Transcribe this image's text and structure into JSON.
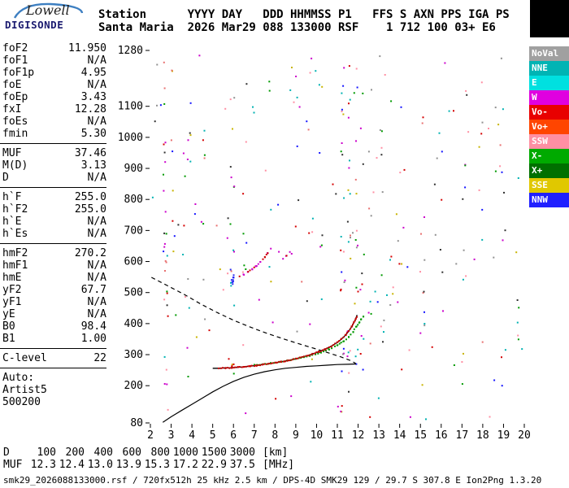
{
  "logo": {
    "brand": "Lowell",
    "product": "DIGISONDE"
  },
  "header": {
    "line1": "Station      YYYY DAY   DDD HHMMSS P1   FFS S AXN PPS IGA PS",
    "line2": "Santa Maria  2026 Mar29 088 133000 RSF    1 712 100 03+ E6"
  },
  "params": {
    "groups": [
      {
        "rows": [
          {
            "label": "foF2",
            "value": "11.950"
          },
          {
            "label": "foF1",
            "value": "N/A"
          },
          {
            "label": "foF1p",
            "value": "4.95"
          },
          {
            "label": "foE",
            "value": "N/A"
          },
          {
            "label": "foEp",
            "value": "3.43"
          },
          {
            "label": "fxI",
            "value": "12.28"
          },
          {
            "label": "foEs",
            "value": "N/A"
          },
          {
            "label": "fmin",
            "value": "5.30"
          }
        ]
      },
      {
        "rows": [
          {
            "label": "MUF",
            "value": "37.46"
          },
          {
            "label": "M(D)",
            "value": "3.13"
          },
          {
            "label": "D",
            "value": "N/A"
          }
        ]
      },
      {
        "rows": [
          {
            "label": "h`F",
            "value": "255.0"
          },
          {
            "label": "h`F2",
            "value": "255.0"
          },
          {
            "label": "h`E",
            "value": "N/A"
          },
          {
            "label": "h`Es",
            "value": "N/A"
          }
        ]
      },
      {
        "rows": [
          {
            "label": "hmF2",
            "value": "270.2"
          },
          {
            "label": "hmF1",
            "value": "N/A"
          },
          {
            "label": "hmE",
            "value": "N/A"
          },
          {
            "label": "yF2",
            "value": "67.7"
          },
          {
            "label": "yF1",
            "value": "N/A"
          },
          {
            "label": "yE",
            "value": "N/A"
          },
          {
            "label": "B0",
            "value": "98.4"
          },
          {
            "label": "B1",
            "value": "1.00"
          }
        ]
      },
      {
        "rows": [
          {
            "label": "C-level",
            "value": "22"
          }
        ]
      },
      {
        "rows": [
          {
            "label": "Auto:",
            "value": ""
          },
          {
            "label": "Artist5",
            "value": ""
          },
          {
            "label": "500200",
            "value": ""
          }
        ]
      }
    ]
  },
  "legend": {
    "items": [
      {
        "label": "NoVal",
        "bg": "#a0a0a0",
        "fg": "#ffffff"
      },
      {
        "label": "NNE",
        "bg": "#00b4b4",
        "fg": "#ffffff"
      },
      {
        "label": "E",
        "bg": "#00e0e0",
        "fg": "#ffffff"
      },
      {
        "label": "W",
        "bg": "#e000e0",
        "fg": "#ffffff"
      },
      {
        "label": "Vo-",
        "bg": "#e80000",
        "fg": "#ffffff"
      },
      {
        "label": "Vo+",
        "bg": "#ff4500",
        "fg": "#ffffff"
      },
      {
        "label": "SSW",
        "bg": "#ff8fa3",
        "fg": "#ffffff"
      },
      {
        "label": "X-",
        "bg": "#00aa00",
        "fg": "#ffffff"
      },
      {
        "label": "X+",
        "bg": "#007000",
        "fg": "#ffffff"
      },
      {
        "label": "SSE",
        "bg": "#e0c800",
        "fg": "#ffffff"
      },
      {
        "label": "NNW",
        "bg": "#2020ff",
        "fg": "#ffffff"
      }
    ]
  },
  "bottom_table": {
    "rows": [
      {
        "label": "D",
        "values": [
          "100",
          "200",
          "400",
          "600",
          "800",
          "1000",
          "1500",
          "3000"
        ],
        "unit": "[km]"
      },
      {
        "label": "MUF",
        "values": [
          "12.3",
          "12.4",
          "13.0",
          "13.9",
          "15.3",
          "17.2",
          "22.9",
          "37.5"
        ],
        "unit": "[MHz]"
      }
    ]
  },
  "footer": {
    "text": "smk29_2026088133000.rsf / 720fx512h 25 kHz 2.5 km / DPS-4D SMK29 129 / 29.7 S 307.8 E Ion2Png 1.3.20"
  },
  "chart_data": {
    "type": "scatter",
    "title": "Ionogram",
    "x_axis": {
      "unit": "MHz",
      "range": [
        2,
        20
      ],
      "ticks": [
        2,
        3,
        4,
        5,
        6,
        7,
        8,
        9,
        10,
        11,
        12,
        13,
        14,
        15,
        16,
        17,
        18,
        19,
        20
      ]
    },
    "y_axis": {
      "unit": "km",
      "range": [
        80,
        1280
      ],
      "ticks": [
        80,
        200,
        300,
        400,
        500,
        600,
        700,
        800,
        900,
        1000,
        1100,
        1280
      ]
    },
    "seed": 421337,
    "speckle_palette": [
      "#cc00cc",
      "#cc00cc",
      "#00b2b2",
      "#00b2b2",
      "#d40000",
      "#909090",
      "#009900",
      "#1414ff",
      "#c8b400",
      "#ff8fa3",
      "#303030",
      "#e87070"
    ],
    "noise_streaks": [
      {
        "f": 2.72,
        "h0": 120,
        "h1": 1265,
        "n": 24
      },
      {
        "f": 3.05,
        "h0": 500,
        "h1": 1265,
        "n": 7
      },
      {
        "f": 3.85,
        "h0": 300,
        "h1": 1260,
        "n": 9
      },
      {
        "f": 4.55,
        "h0": 400,
        "h1": 1200,
        "n": 6
      },
      {
        "f": 5.95,
        "h0": 150,
        "h1": 1260,
        "n": 16
      },
      {
        "f": 5.93,
        "h0": 470,
        "h1": 575,
        "n": 11,
        "colors": [
          "#1414ff",
          "#00b2b2",
          "#2a2af0"
        ]
      },
      {
        "f": 6.55,
        "h0": 250,
        "h1": 1150,
        "n": 7
      },
      {
        "f": 7.8,
        "h0": 400,
        "h1": 1250,
        "n": 5
      },
      {
        "f": 9.0,
        "h0": 350,
        "h1": 1250,
        "n": 6
      },
      {
        "f": 10.2,
        "h0": 400,
        "h1": 1250,
        "n": 5
      },
      {
        "f": 11.25,
        "h0": 100,
        "h1": 1270,
        "n": 22
      },
      {
        "f": 11.55,
        "h0": 120,
        "h1": 1270,
        "n": 18
      },
      {
        "f": 11.9,
        "h0": 150,
        "h1": 1270,
        "n": 15
      },
      {
        "f": 12.2,
        "h0": 200,
        "h1": 1250,
        "n": 11
      },
      {
        "f": 12.6,
        "h0": 300,
        "h1": 1200,
        "n": 6
      },
      {
        "f": 13.2,
        "h0": 250,
        "h1": 1250,
        "n": 9
      },
      {
        "f": 14.0,
        "h0": 400,
        "h1": 1200,
        "n": 5
      },
      {
        "f": 15.1,
        "h0": 200,
        "h1": 1250,
        "n": 9
      },
      {
        "f": 16.0,
        "h0": 400,
        "h1": 1150,
        "n": 5
      },
      {
        "f": 17.1,
        "h0": 150,
        "h1": 1250,
        "n": 9
      },
      {
        "f": 17.9,
        "h0": 250,
        "h1": 1200,
        "n": 7
      },
      {
        "f": 19.0,
        "h0": 200,
        "h1": 1250,
        "n": 8
      },
      {
        "f": 19.65,
        "h0": 300,
        "h1": 1250,
        "n": 7
      }
    ],
    "background_speckle": {
      "n": 135,
      "f_range": [
        2.1,
        19.9
      ],
      "h_range": [
        90,
        1270
      ]
    },
    "traces": {
      "o_trace_dots": {
        "color": "#cc0000",
        "points": [
          [
            5.3,
            256
          ],
          [
            5.6,
            257
          ],
          [
            5.9,
            258
          ],
          [
            6.2,
            259
          ],
          [
            6.5,
            261
          ],
          [
            6.8,
            263
          ],
          [
            7.1,
            265
          ],
          [
            7.4,
            268
          ],
          [
            7.7,
            271
          ],
          [
            8.0,
            274
          ],
          [
            8.3,
            277
          ],
          [
            8.6,
            281
          ],
          [
            8.9,
            285
          ],
          [
            9.2,
            290
          ],
          [
            9.5,
            296
          ],
          [
            9.8,
            302
          ],
          [
            10.1,
            309
          ],
          [
            10.4,
            317
          ],
          [
            10.7,
            327
          ],
          [
            11.0,
            339
          ],
          [
            11.2,
            350
          ],
          [
            11.4,
            363
          ],
          [
            11.55,
            376
          ],
          [
            11.7,
            391
          ],
          [
            11.8,
            404
          ],
          [
            11.88,
            415
          ],
          [
            11.93,
            422
          ]
        ]
      },
      "x_trace_dots": {
        "color": "#009900",
        "points": [
          [
            7.0,
            266
          ],
          [
            7.4,
            269
          ],
          [
            7.8,
            272
          ],
          [
            8.2,
            276
          ],
          [
            8.6,
            281
          ],
          [
            9.0,
            286
          ],
          [
            9.4,
            292
          ],
          [
            9.8,
            299
          ],
          [
            10.2,
            307
          ],
          [
            10.6,
            317
          ],
          [
            11.0,
            330
          ],
          [
            11.3,
            343
          ],
          [
            11.55,
            357
          ],
          [
            11.75,
            372
          ],
          [
            11.92,
            390
          ],
          [
            12.05,
            403
          ],
          [
            12.15,
            413
          ],
          [
            12.24,
            422
          ]
        ]
      },
      "second_hop_dots": {
        "color": "#cc0000",
        "alt_color": "#cc00cc",
        "points": [
          [
            6.3,
            552
          ],
          [
            6.5,
            558
          ],
          [
            6.7,
            566
          ],
          [
            6.9,
            575
          ],
          [
            7.1,
            586
          ],
          [
            7.3,
            599
          ],
          [
            7.5,
            614
          ],
          [
            7.65,
            628
          ],
          [
            7.78,
            641
          ]
        ]
      },
      "second_hop_b_dots": {
        "color": "#cc00cc",
        "alt_color": "#cc0000",
        "points": [
          [
            8.4,
            608
          ],
          [
            8.55,
            618
          ],
          [
            8.7,
            630
          ]
        ]
      },
      "fitted_trace_line": {
        "color": "#000000",
        "style": "solid",
        "points": [
          [
            5.0,
            256
          ],
          [
            5.3,
            256
          ],
          [
            5.6,
            257
          ],
          [
            5.9,
            258
          ],
          [
            6.2,
            259
          ],
          [
            6.5,
            261
          ],
          [
            6.8,
            263
          ],
          [
            7.1,
            265
          ],
          [
            7.4,
            268
          ],
          [
            7.7,
            271
          ],
          [
            8.0,
            274
          ],
          [
            8.3,
            277
          ],
          [
            8.6,
            281
          ],
          [
            8.9,
            285
          ],
          [
            9.2,
            290
          ],
          [
            9.5,
            296
          ],
          [
            9.8,
            302
          ],
          [
            10.1,
            309
          ],
          [
            10.4,
            317
          ],
          [
            10.7,
            327
          ],
          [
            11.0,
            339
          ],
          [
            11.2,
            350
          ],
          [
            11.4,
            363
          ],
          [
            11.55,
            376
          ],
          [
            11.7,
            391
          ],
          [
            11.8,
            404
          ],
          [
            11.88,
            415
          ],
          [
            11.95,
            428
          ]
        ]
      },
      "profile_line": {
        "color": "#000000",
        "style": "solid",
        "points": [
          [
            2.6,
            82
          ],
          [
            3.0,
            100
          ],
          [
            3.5,
            120
          ],
          [
            4.0,
            140
          ],
          [
            4.5,
            160
          ],
          [
            5.0,
            180
          ],
          [
            5.5,
            198
          ],
          [
            6.0,
            214
          ],
          [
            6.5,
            227
          ],
          [
            7.0,
            237
          ],
          [
            7.5,
            245
          ],
          [
            8.0,
            251
          ],
          [
            8.5,
            256
          ],
          [
            9.0,
            259
          ],
          [
            9.5,
            262
          ],
          [
            10.0,
            264
          ],
          [
            10.5,
            266
          ],
          [
            11.0,
            268
          ],
          [
            11.5,
            269
          ],
          [
            11.9,
            270
          ]
        ]
      },
      "topside_dashed": {
        "color": "#000000",
        "style": "dashed",
        "points": [
          [
            2.05,
            549
          ],
          [
            2.8,
            523
          ],
          [
            3.6,
            495
          ],
          [
            4.4,
            464
          ],
          [
            5.2,
            436
          ],
          [
            6.0,
            411
          ],
          [
            6.8,
            389
          ],
          [
            7.6,
            369
          ],
          [
            8.4,
            351
          ],
          [
            9.2,
            334
          ],
          [
            10.0,
            318
          ],
          [
            10.6,
            305
          ],
          [
            11.2,
            292
          ],
          [
            11.6,
            282
          ],
          [
            11.88,
            272
          ]
        ]
      }
    }
  }
}
